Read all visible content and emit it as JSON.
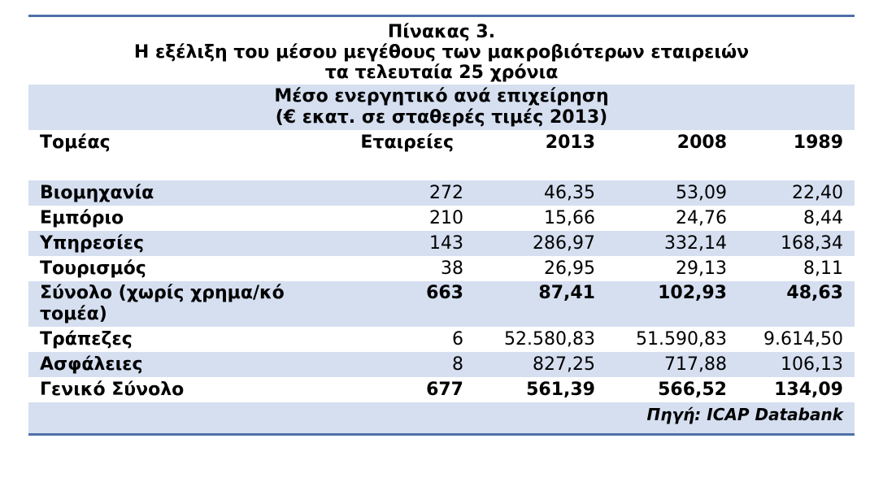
{
  "title": {
    "line1": "Πίνακας 3.",
    "line2": "Η εξέλιξη του μέσου μεγέθους των μακροβιότερων εταιρειών",
    "line3": "τα τελευταία 25 χρόνια"
  },
  "subtitle": {
    "line1": "Μέσο ενεργητικό ανά επιχείρηση",
    "line2": "(€ εκατ. σε σταθερές τιμές 2013)"
  },
  "columns": {
    "sector": "Τομέας",
    "firms": "Εταιρείες",
    "y2013": "2013",
    "y2008": "2008",
    "y1989": "1989"
  },
  "rows": [
    {
      "sector": "Βιομηχανία",
      "firms": "272",
      "y2013": "46,35",
      "y2008": "53,09",
      "y1989": "22,40"
    },
    {
      "sector": "Εμπόριο",
      "firms": "210",
      "y2013": "15,66",
      "y2008": "24,76",
      "y1989": "8,44"
    },
    {
      "sector": "Υπηρεσίες",
      "firms": "143",
      "y2013": "286,97",
      "y2008": "332,14",
      "y1989": "168,34"
    },
    {
      "sector": "Τουρισμός",
      "firms": "38",
      "y2013": "26,95",
      "y2008": "29,13",
      "y1989": "8,11"
    },
    {
      "sector": "Σύνολο (χωρίς χρημα/κό τομέα)",
      "firms": "663",
      "y2013": "87,41",
      "y2008": "102,93",
      "y1989": "48,63"
    },
    {
      "sector": "Τράπεζες",
      "firms": "6",
      "y2013": "52.580,83",
      "y2008": "51.590,83",
      "y1989": "9.614,50"
    },
    {
      "sector": "Ασφάλειες",
      "firms": "8",
      "y2013": "827,25",
      "y2008": "717,88",
      "y1989": "106,13"
    },
    {
      "sector": "Γενικό Σύνολο",
      "firms": "677",
      "y2013": "561,39",
      "y2008": "566,52",
      "y1989": "134,09"
    }
  ],
  "source": "Πηγή: ICAP Databank",
  "colors": {
    "rule": "#4f6fa8",
    "shade": "#d5dff0"
  }
}
